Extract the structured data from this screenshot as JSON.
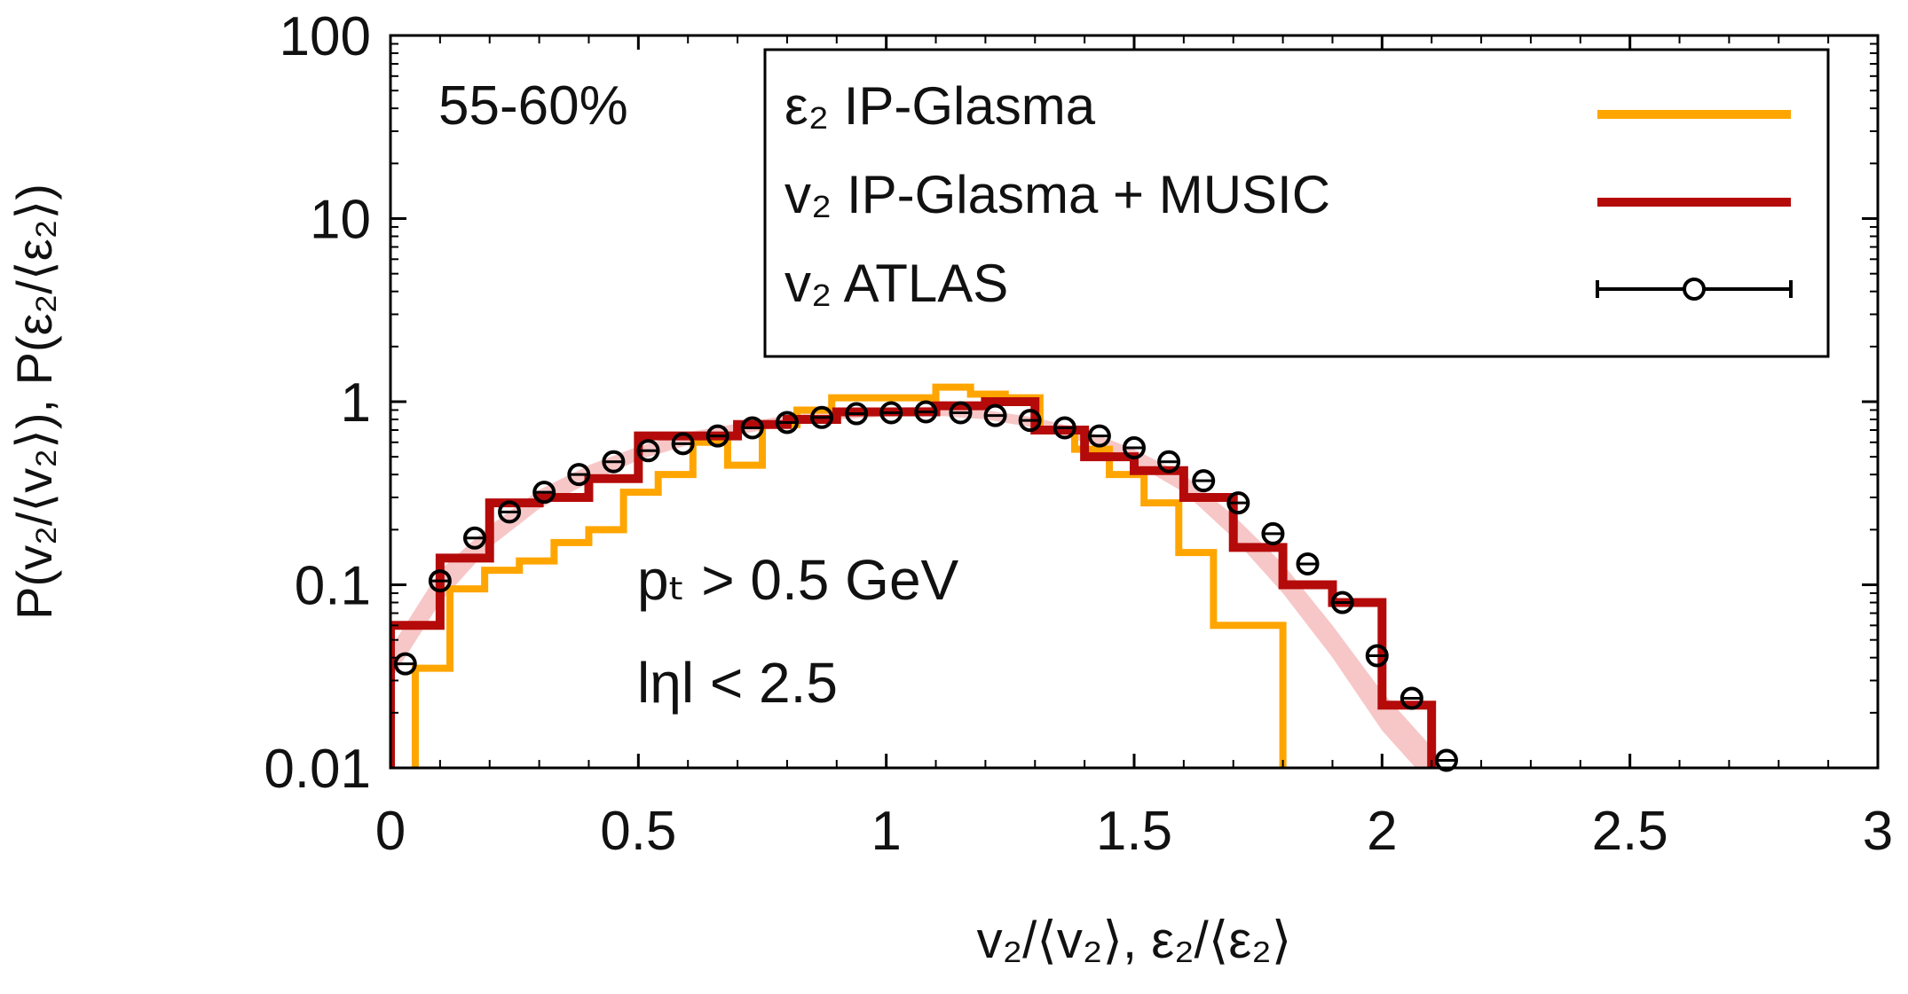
{
  "chart_data": {
    "type": "line",
    "xlabel": "v₂/⟨v₂⟩, ε₂/⟨ε₂⟩",
    "ylabel": "P(v₂/⟨v₂⟩), P(ε₂/⟨ε₂⟩)",
    "xlim": [
      0,
      3
    ],
    "ylim": [
      0.01,
      100
    ],
    "yscale": "log",
    "x_ticks": [
      0,
      0.5,
      1,
      1.5,
      2,
      2.5,
      3
    ],
    "x_tick_labels": [
      "0",
      "0.5",
      "1",
      "1.5",
      "2",
      "2.5",
      "3"
    ],
    "y_ticks": [
      0.01,
      0.1,
      1,
      10,
      100
    ],
    "y_tick_labels": [
      "0.01",
      "0.1",
      "1",
      "10",
      "100"
    ],
    "legend_position": "top-right",
    "annotations": {
      "centrality": "55-60%",
      "pt_cut": "pₜ > 0.5 GeV",
      "eta_cut": "lηl < 2.5"
    },
    "series": [
      {
        "name": "ε₂ IP-Glasma",
        "style": "step",
        "color": "#ffa500",
        "edges": [
          0.05,
          0.12,
          0.19,
          0.26,
          0.33,
          0.4,
          0.47,
          0.54,
          0.61,
          0.68,
          0.75,
          0.82,
          0.89,
          0.96,
          1.03,
          1.1,
          1.17,
          1.24,
          1.31,
          1.38,
          1.45,
          1.52,
          1.59,
          1.66,
          1.73,
          1.8
        ],
        "values": [
          0.035,
          0.095,
          0.12,
          0.135,
          0.17,
          0.2,
          0.32,
          0.4,
          0.6,
          0.45,
          0.75,
          0.9,
          1.05,
          1.05,
          1.05,
          1.2,
          1.1,
          1.05,
          0.7,
          0.55,
          0.4,
          0.28,
          0.15,
          0.06,
          0.06
        ],
        "drop_to": 0.01
      },
      {
        "name": "v₂ IP-Glasma + MUSIC",
        "style": "step",
        "color": "#b50a0a",
        "edges": [
          0.0,
          0.1,
          0.2,
          0.3,
          0.4,
          0.5,
          0.6,
          0.7,
          0.8,
          0.9,
          1.0,
          1.1,
          1.2,
          1.3,
          1.4,
          1.5,
          1.6,
          1.7,
          1.8,
          1.9,
          2.0,
          2.1
        ],
        "values": [
          0.06,
          0.14,
          0.28,
          0.3,
          0.38,
          0.65,
          0.65,
          0.75,
          0.8,
          0.88,
          0.88,
          0.95,
          1.0,
          0.7,
          0.5,
          0.42,
          0.3,
          0.16,
          0.1,
          0.08,
          0.022
        ],
        "drop_to": 0.01,
        "band": {
          "color": "#f4b4b4",
          "x": [
            0.0,
            0.1,
            0.2,
            0.3,
            0.4,
            0.5,
            0.6,
            0.7,
            0.8,
            0.9,
            1.0,
            1.1,
            1.2,
            1.3,
            1.4,
            1.5,
            1.6,
            1.7,
            1.8,
            1.9,
            2.0,
            2.1
          ],
          "low": [
            0.03,
            0.08,
            0.16,
            0.26,
            0.36,
            0.48,
            0.58,
            0.66,
            0.74,
            0.8,
            0.83,
            0.84,
            0.8,
            0.72,
            0.6,
            0.46,
            0.32,
            0.18,
            0.09,
            0.04,
            0.016,
            0.008
          ],
          "high": [
            0.045,
            0.12,
            0.21,
            0.33,
            0.45,
            0.57,
            0.68,
            0.76,
            0.84,
            0.9,
            0.93,
            0.94,
            0.9,
            0.82,
            0.7,
            0.55,
            0.4,
            0.24,
            0.13,
            0.06,
            0.026,
            0.013
          ]
        }
      },
      {
        "name": "v₂ ATLAS",
        "style": "points",
        "color": "#000000",
        "x": [
          0.03,
          0.1,
          0.17,
          0.24,
          0.31,
          0.38,
          0.45,
          0.52,
          0.59,
          0.66,
          0.73,
          0.8,
          0.87,
          0.94,
          1.01,
          1.08,
          1.15,
          1.22,
          1.29,
          1.36,
          1.43,
          1.5,
          1.57,
          1.64,
          1.71,
          1.78,
          1.85,
          1.92,
          1.99,
          2.06,
          2.13
        ],
        "y": [
          0.037,
          0.105,
          0.18,
          0.25,
          0.32,
          0.4,
          0.47,
          0.54,
          0.59,
          0.65,
          0.72,
          0.77,
          0.82,
          0.86,
          0.87,
          0.88,
          0.87,
          0.84,
          0.79,
          0.72,
          0.65,
          0.56,
          0.47,
          0.37,
          0.28,
          0.19,
          0.13,
          0.08,
          0.041,
          0.024,
          0.011
        ]
      }
    ]
  }
}
